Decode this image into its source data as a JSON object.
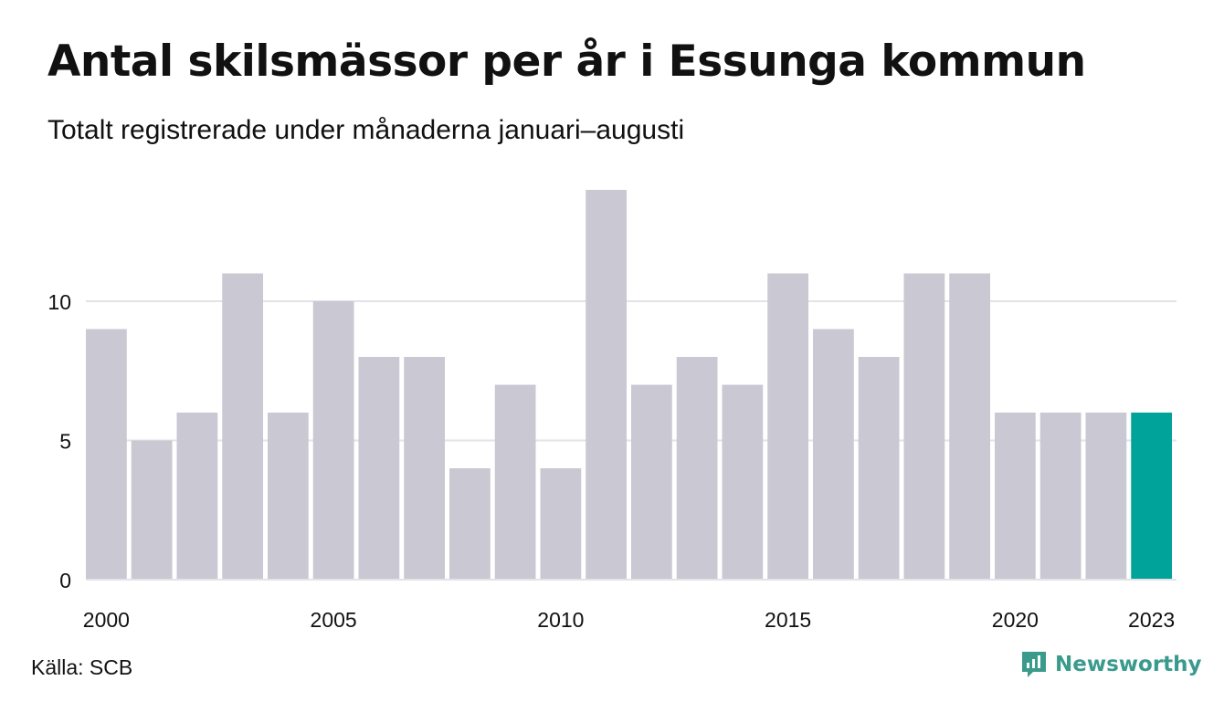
{
  "header": {
    "title": "Antal skilsmässor per år i Essunga kommun",
    "subtitle": "Totalt registrerade under månaderna januari–augusti"
  },
  "footer": {
    "source": "Källa: SCB",
    "brand": "Newsworthy"
  },
  "colors": {
    "bar": "#c9c8d3",
    "highlight": "#00a39a",
    "grid": "#e3e3e8",
    "brand": "#3a9a8c"
  },
  "icons": {
    "brand_logo": "newsworthy-logo-icon"
  },
  "chart_data": {
    "type": "bar",
    "categories": [
      "2000",
      "2001",
      "2002",
      "2003",
      "2004",
      "2005",
      "2006",
      "2007",
      "2008",
      "2009",
      "2010",
      "2011",
      "2012",
      "2013",
      "2014",
      "2015",
      "2016",
      "2017",
      "2018",
      "2019",
      "2020",
      "2021",
      "2022",
      "2023"
    ],
    "values": [
      9,
      5,
      6,
      11,
      6,
      10,
      8,
      8,
      4,
      7,
      4,
      14,
      7,
      8,
      7,
      11,
      9,
      8,
      11,
      11,
      6,
      6,
      6,
      6
    ],
    "highlight_category": "2023",
    "x_tick_labels": [
      "2000",
      "2005",
      "2010",
      "2015",
      "2020",
      "2023"
    ],
    "y_ticks": [
      0,
      5,
      10
    ],
    "ylim": [
      0,
      14
    ],
    "grid": true,
    "legend": "none"
  }
}
